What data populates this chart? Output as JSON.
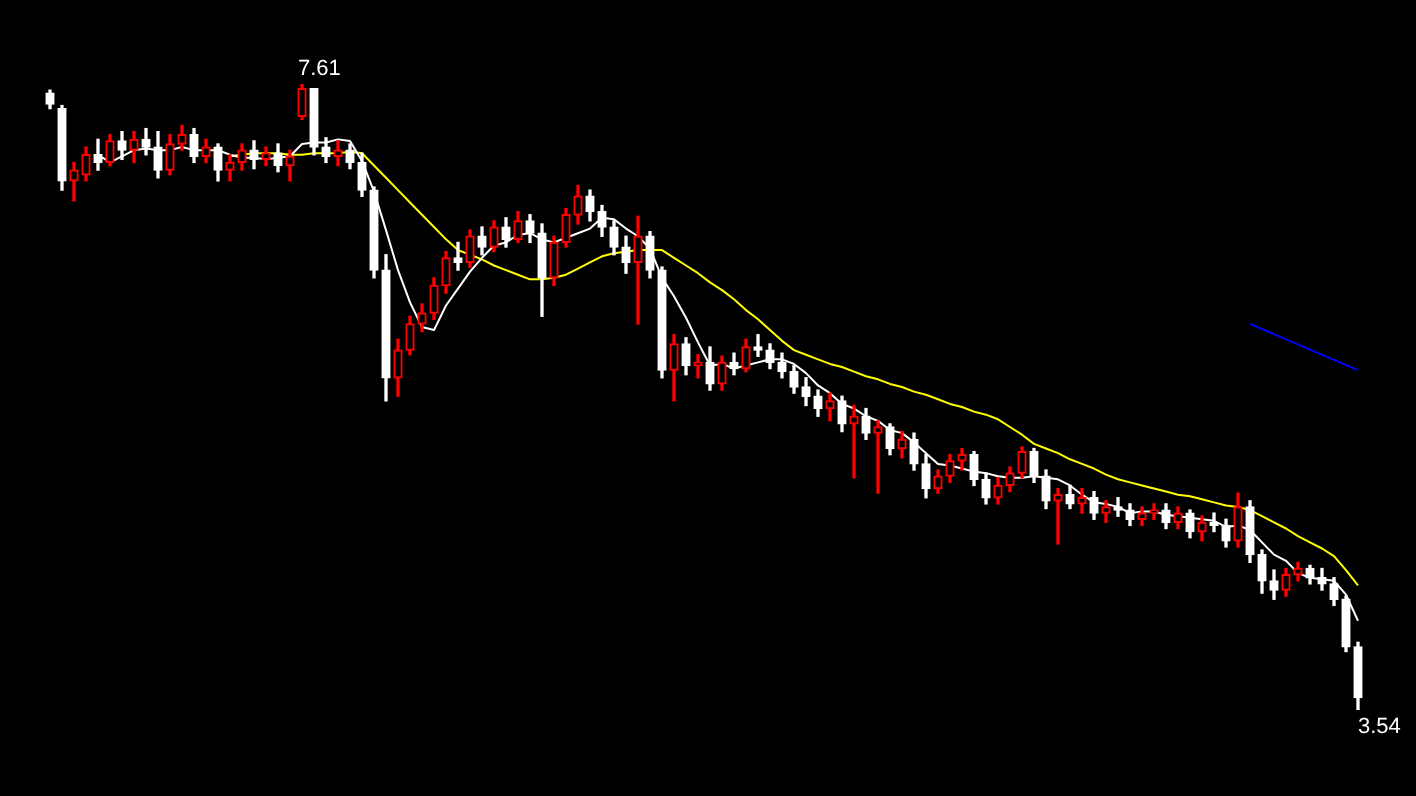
{
  "chart_data": {
    "type": "candlestick",
    "tick_labels": false,
    "categories": [
      null,
      null,
      null,
      null,
      null,
      null,
      null,
      null,
      null,
      null,
      null,
      null,
      null,
      null,
      null,
      null,
      null,
      null,
      null,
      null,
      null,
      null,
      null,
      null,
      null,
      null,
      null,
      null,
      null,
      null,
      null,
      null,
      null,
      null,
      null,
      null,
      null,
      null,
      null,
      null,
      null,
      null,
      null,
      null,
      null,
      null,
      null,
      null,
      null,
      null,
      null,
      null,
      null,
      null,
      null,
      null,
      null,
      null,
      null,
      null,
      null,
      null,
      null,
      null,
      null,
      null,
      null,
      null,
      null,
      null,
      null,
      null,
      null,
      null,
      null,
      null,
      null,
      null,
      null,
      null,
      null,
      null,
      null,
      null,
      null,
      null,
      null,
      null,
      null,
      null,
      null,
      null,
      null,
      null,
      null,
      null,
      null,
      null,
      null,
      null,
      null,
      null,
      null,
      null,
      null,
      null,
      null,
      null,
      null,
      null
    ],
    "ohlc": [
      [
        7.55,
        7.57,
        7.45,
        7.48
      ],
      [
        7.45,
        7.47,
        6.92,
        6.98
      ],
      [
        6.98,
        7.1,
        6.85,
        7.05
      ],
      [
        7.02,
        7.2,
        6.98,
        7.15
      ],
      [
        7.15,
        7.25,
        7.05,
        7.1
      ],
      [
        7.1,
        7.28,
        7.08,
        7.24
      ],
      [
        7.24,
        7.3,
        7.12,
        7.18
      ],
      [
        7.18,
        7.3,
        7.1,
        7.25
      ],
      [
        7.25,
        7.32,
        7.15,
        7.2
      ],
      [
        7.2,
        7.3,
        7.0,
        7.05
      ],
      [
        7.05,
        7.28,
        7.02,
        7.22
      ],
      [
        7.22,
        7.34,
        7.18,
        7.28
      ],
      [
        7.28,
        7.32,
        7.1,
        7.14
      ],
      [
        7.14,
        7.25,
        7.1,
        7.2
      ],
      [
        7.2,
        7.22,
        6.98,
        7.05
      ],
      [
        7.05,
        7.15,
        6.98,
        7.1
      ],
      [
        7.1,
        7.22,
        7.05,
        7.18
      ],
      [
        7.18,
        7.24,
        7.06,
        7.12
      ],
      [
        7.12,
        7.2,
        7.08,
        7.16
      ],
      [
        7.16,
        7.22,
        7.04,
        7.08
      ],
      [
        7.08,
        7.18,
        6.98,
        7.14
      ],
      [
        7.4,
        7.61,
        7.38,
        7.58
      ],
      [
        7.58,
        7.58,
        7.15,
        7.2
      ],
      [
        7.2,
        7.26,
        7.1,
        7.14
      ],
      [
        7.14,
        7.24,
        7.08,
        7.18
      ],
      [
        7.18,
        7.22,
        7.06,
        7.1
      ],
      [
        7.1,
        7.16,
        6.88,
        6.92
      ],
      [
        6.92,
        6.94,
        6.35,
        6.4
      ],
      [
        6.4,
        6.5,
        5.55,
        5.7
      ],
      [
        5.7,
        5.95,
        5.58,
        5.88
      ],
      [
        5.88,
        6.1,
        5.85,
        6.05
      ],
      [
        6.05,
        6.18,
        6.0,
        6.12
      ],
      [
        6.12,
        6.35,
        6.08,
        6.3
      ],
      [
        6.3,
        6.52,
        6.25,
        6.48
      ],
      [
        6.48,
        6.58,
        6.4,
        6.45
      ],
      [
        6.45,
        6.66,
        6.42,
        6.62
      ],
      [
        6.62,
        6.68,
        6.5,
        6.55
      ],
      [
        6.55,
        6.72,
        6.52,
        6.68
      ],
      [
        6.68,
        6.74,
        6.55,
        6.6
      ],
      [
        6.6,
        6.78,
        6.58,
        6.72
      ],
      [
        6.72,
        6.76,
        6.58,
        6.64
      ],
      [
        6.64,
        6.7,
        6.1,
        6.35
      ],
      [
        6.35,
        6.62,
        6.3,
        6.58
      ],
      [
        6.58,
        6.8,
        6.55,
        6.76
      ],
      [
        6.76,
        6.95,
        6.7,
        6.88
      ],
      [
        6.88,
        6.92,
        6.72,
        6.78
      ],
      [
        6.78,
        6.82,
        6.62,
        6.68
      ],
      [
        6.68,
        6.72,
        6.5,
        6.55
      ],
      [
        6.55,
        6.62,
        6.38,
        6.45
      ],
      [
        6.45,
        6.75,
        6.05,
        6.62
      ],
      [
        6.62,
        6.65,
        6.35,
        6.4
      ],
      [
        6.4,
        6.42,
        5.7,
        5.75
      ],
      [
        5.75,
        5.98,
        5.55,
        5.92
      ],
      [
        5.92,
        5.96,
        5.72,
        5.78
      ],
      [
        5.78,
        5.85,
        5.7,
        5.8
      ],
      [
        5.8,
        5.9,
        5.62,
        5.66
      ],
      [
        5.66,
        5.84,
        5.62,
        5.8
      ],
      [
        5.8,
        5.86,
        5.72,
        5.76
      ],
      [
        5.76,
        5.95,
        5.74,
        5.9
      ],
      [
        5.9,
        5.98,
        5.84,
        5.88
      ],
      [
        5.88,
        5.92,
        5.76,
        5.8
      ],
      [
        5.8,
        5.86,
        5.7,
        5.74
      ],
      [
        5.74,
        5.78,
        5.6,
        5.64
      ],
      [
        5.64,
        5.7,
        5.52,
        5.58
      ],
      [
        5.58,
        5.62,
        5.45,
        5.5
      ],
      [
        5.5,
        5.6,
        5.42,
        5.55
      ],
      [
        5.55,
        5.58,
        5.35,
        5.4
      ],
      [
        5.4,
        5.52,
        5.05,
        5.45
      ],
      [
        5.45,
        5.5,
        5.3,
        5.34
      ],
      [
        5.34,
        5.42,
        4.95,
        5.38
      ],
      [
        5.38,
        5.4,
        5.2,
        5.24
      ],
      [
        5.24,
        5.35,
        5.18,
        5.3
      ],
      [
        5.3,
        5.34,
        5.1,
        5.14
      ],
      [
        5.14,
        5.2,
        4.92,
        4.98
      ],
      [
        4.98,
        5.1,
        4.95,
        5.06
      ],
      [
        5.06,
        5.2,
        5.02,
        5.16
      ],
      [
        5.16,
        5.24,
        5.1,
        5.2
      ],
      [
        5.2,
        5.22,
        5.0,
        5.04
      ],
      [
        5.04,
        5.08,
        4.88,
        4.92
      ],
      [
        4.92,
        5.05,
        4.88,
        5.0
      ],
      [
        5.0,
        5.12,
        4.96,
        5.08
      ],
      [
        5.08,
        5.25,
        5.05,
        5.22
      ],
      [
        5.22,
        5.24,
        5.02,
        5.06
      ],
      [
        5.06,
        5.1,
        4.85,
        4.9
      ],
      [
        4.9,
        4.98,
        4.62,
        4.94
      ],
      [
        4.94,
        5.0,
        4.85,
        4.88
      ],
      [
        4.88,
        4.98,
        4.82,
        4.92
      ],
      [
        4.92,
        4.96,
        4.78,
        4.82
      ],
      [
        4.82,
        4.9,
        4.76,
        4.86
      ],
      [
        4.86,
        4.92,
        4.8,
        4.84
      ],
      [
        4.84,
        4.88,
        4.74,
        4.78
      ],
      [
        4.78,
        4.86,
        4.74,
        4.82
      ],
      [
        4.82,
        4.88,
        4.78,
        4.84
      ],
      [
        4.84,
        4.88,
        4.72,
        4.76
      ],
      [
        4.76,
        4.86,
        4.72,
        4.82
      ],
      [
        4.82,
        4.84,
        4.66,
        4.7
      ],
      [
        4.7,
        4.8,
        4.64,
        4.76
      ],
      [
        4.76,
        4.82,
        4.7,
        4.74
      ],
      [
        4.74,
        4.78,
        4.6,
        4.64
      ],
      [
        4.64,
        4.95,
        4.6,
        4.86
      ],
      [
        4.86,
        4.9,
        4.5,
        4.55
      ],
      [
        4.55,
        4.58,
        4.3,
        4.38
      ],
      [
        4.38,
        4.45,
        4.26,
        4.32
      ],
      [
        4.32,
        4.46,
        4.28,
        4.42
      ],
      [
        4.42,
        4.5,
        4.38,
        4.46
      ],
      [
        4.46,
        4.48,
        4.36,
        4.4
      ],
      [
        4.4,
        4.46,
        4.32,
        4.36
      ],
      [
        4.36,
        4.4,
        4.22,
        4.26
      ],
      [
        4.26,
        4.28,
        3.92,
        3.95
      ],
      [
        3.95,
        3.98,
        3.54,
        3.62
      ]
    ],
    "series": [
      {
        "type": "line",
        "color": "#ffffff",
        "values": [
          null,
          null,
          null,
          null,
          7.15,
          7.1,
          7.14,
          7.18,
          7.19,
          7.18,
          7.18,
          7.2,
          7.18,
          7.18,
          7.18,
          7.15,
          7.13,
          7.13,
          7.12,
          7.13,
          7.14,
          7.22,
          7.23,
          7.23,
          7.25,
          7.24,
          7.11,
          6.91,
          6.66,
          6.4,
          6.19,
          6.03,
          6.01,
          6.17,
          6.28,
          6.39,
          6.48,
          6.56,
          6.58,
          6.63,
          6.64,
          6.6,
          6.58,
          6.61,
          6.64,
          6.67,
          6.74,
          6.73,
          6.67,
          6.62,
          6.54,
          6.35,
          6.23,
          6.09,
          5.93,
          5.78,
          5.79,
          5.76,
          5.78,
          5.8,
          5.82,
          5.82,
          5.79,
          5.73,
          5.65,
          5.6,
          5.53,
          5.5,
          5.45,
          5.42,
          5.36,
          5.34,
          5.28,
          5.21,
          5.14,
          5.13,
          5.11,
          5.09,
          5.08,
          5.06,
          5.05,
          5.05,
          5.06,
          5.05,
          5.04,
          5.0,
          4.94,
          4.89,
          4.88,
          4.86,
          4.82,
          4.83,
          4.83,
          4.81,
          4.8,
          4.79,
          4.78,
          4.77,
          4.73,
          4.74,
          4.71,
          4.63,
          4.55,
          4.51,
          4.43,
          4.4,
          4.39,
          4.38,
          4.29,
          4.12
        ]
      },
      {
        "type": "line",
        "color": "#ffff00",
        "values": [
          null,
          null,
          null,
          null,
          null,
          null,
          null,
          null,
          null,
          null,
          null,
          null,
          null,
          null,
          null,
          7.14,
          7.15,
          7.16,
          7.16,
          7.16,
          7.15,
          7.15,
          7.16,
          7.16,
          7.16,
          7.17,
          7.16,
          7.08,
          7.0,
          6.92,
          6.84,
          6.76,
          6.68,
          6.6,
          6.53,
          6.5,
          6.47,
          6.43,
          6.4,
          6.37,
          6.34,
          6.34,
          6.35,
          6.37,
          6.41,
          6.45,
          6.49,
          6.51,
          6.52,
          6.53,
          6.53,
          6.53,
          6.48,
          6.43,
          6.38,
          6.32,
          6.27,
          6.21,
          6.14,
          6.08,
          6.01,
          5.94,
          5.88,
          5.85,
          5.82,
          5.79,
          5.77,
          5.74,
          5.71,
          5.69,
          5.66,
          5.64,
          5.61,
          5.59,
          5.56,
          5.53,
          5.51,
          5.48,
          5.46,
          5.43,
          5.38,
          5.33,
          5.27,
          5.24,
          5.21,
          5.17,
          5.14,
          5.11,
          5.07,
          5.04,
          5.02,
          5.0,
          4.98,
          4.96,
          4.94,
          4.93,
          4.91,
          4.89,
          4.87,
          4.86,
          4.84,
          4.8,
          4.76,
          4.72,
          4.67,
          4.63,
          4.59,
          4.54,
          4.45,
          4.35
        ]
      },
      {
        "type": "line",
        "color": "#0000ff",
        "values": [
          null,
          null,
          null,
          null,
          null,
          null,
          null,
          null,
          null,
          null,
          null,
          null,
          null,
          null,
          null,
          null,
          null,
          null,
          null,
          null,
          null,
          null,
          null,
          null,
          null,
          null,
          null,
          null,
          null,
          null,
          null,
          null,
          null,
          null,
          null,
          null,
          null,
          null,
          null,
          null,
          null,
          null,
          null,
          null,
          null,
          null,
          null,
          null,
          null,
          null,
          null,
          null,
          null,
          null,
          null,
          null,
          null,
          null,
          null,
          null,
          null,
          null,
          null,
          null,
          null,
          null,
          null,
          null,
          null,
          null,
          null,
          null,
          null,
          null,
          null,
          null,
          null,
          null,
          null,
          null,
          null,
          null,
          null,
          null,
          null,
          null,
          null,
          null,
          null,
          null,
          null,
          null,
          null,
          null,
          null,
          null,
          null,
          null,
          null,
          null,
          6.05,
          null,
          null,
          null,
          null,
          null,
          null,
          null,
          null,
          5.75
        ]
      }
    ],
    "annotations": [
      "7.61",
      "3.54"
    ]
  }
}
